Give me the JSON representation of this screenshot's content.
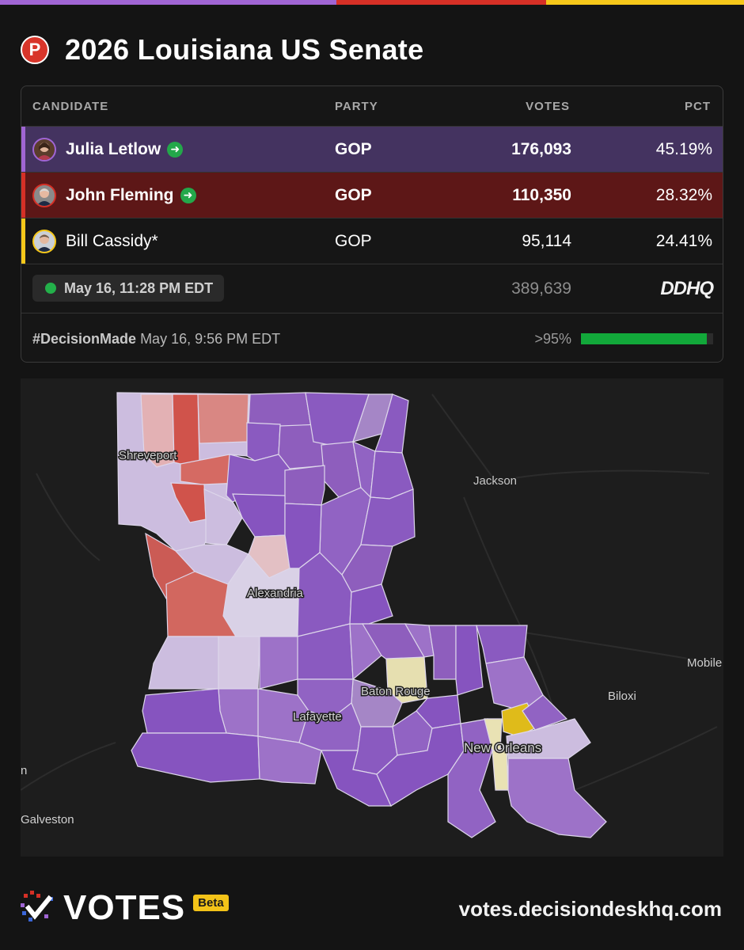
{
  "colors": {
    "purple": "#a065d4",
    "red": "#d63026",
    "yellow": "#f6c81a",
    "accent_green": "#12a83a"
  },
  "header": {
    "party_letter": "P",
    "title": "2026 Louisiana US Senate"
  },
  "table": {
    "headers": {
      "candidate": "CANDIDATE",
      "party": "PARTY",
      "votes": "VOTES",
      "pct": "PCT"
    },
    "rows": [
      {
        "name": "Julia Letlow",
        "advancing": true,
        "party": "GOP",
        "votes": "176,093",
        "pct": "45.19%",
        "color": "#a065d4"
      },
      {
        "name": "John Fleming",
        "advancing": true,
        "party": "GOP",
        "votes": "110,350",
        "pct": "28.32%",
        "color": "#d63026"
      },
      {
        "name": "Bill Cassidy*",
        "advancing": false,
        "party": "GOP",
        "votes": "95,114",
        "pct": "24.41%",
        "color": "#f6c81a"
      }
    ],
    "status": {
      "timestamp": "May 16, 11:28 PM EDT",
      "total_votes": "389,639",
      "brand": "DDHQ"
    },
    "decision": {
      "hashtag": "#DecisionMade",
      "time": "May 16, 9:56 PM EDT",
      "probability": ">95%",
      "probability_fill": 0.95
    }
  },
  "map": {
    "labels": {
      "shreveport": "Shreveport",
      "jackson": "Jackson",
      "alexandria": "Alexandria",
      "baton_rouge": "Baton Rouge",
      "lafayette": "Lafayette",
      "new_orleans": "New Orleans",
      "biloxi": "Biloxi",
      "mobile": "Mobile",
      "galveston": "Galveston",
      "edge": "n"
    }
  },
  "footer": {
    "logo": "VOTES",
    "beta": "Beta",
    "url": "votes.decisiondeskhq.com"
  }
}
